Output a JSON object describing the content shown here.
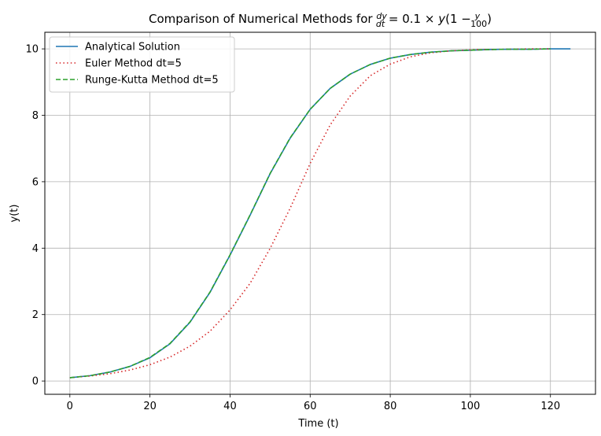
{
  "chart_data": {
    "type": "line",
    "title": {
      "prefix": "Comparison of Numerical Methods for ",
      "dy": "dy",
      "dt": "dt",
      "eq": " = 0.1 × ",
      "y_var": "y",
      "open": "(1 − ",
      "frac_num": "y",
      "frac_den": "100",
      "close": ")"
    },
    "xlabel": "Time (t)",
    "ylabel": "y(t)",
    "xlim": [
      -6.25,
      131.25
    ],
    "ylim": [
      -0.4,
      10.5
    ],
    "xticks": [
      0,
      20,
      40,
      60,
      80,
      100,
      120
    ],
    "yticks": [
      0,
      2,
      4,
      6,
      8,
      10
    ],
    "grid": true,
    "legend_position": "top-left",
    "series": [
      {
        "name": "Analytical Solution",
        "color": "#1f77b4",
        "style": "solid",
        "x": [
          0,
          5,
          10,
          15,
          20,
          25,
          30,
          35,
          40,
          45,
          50,
          55,
          60,
          65,
          70,
          75,
          80,
          85,
          90,
          95,
          100,
          105,
          110,
          115,
          120,
          125
        ],
        "y": [
          0.1,
          0.16,
          0.27,
          0.44,
          0.7,
          1.12,
          1.77,
          2.67,
          3.79,
          4.99,
          6.24,
          7.31,
          8.18,
          8.81,
          9.24,
          9.53,
          9.72,
          9.83,
          9.9,
          9.94,
          9.96,
          9.98,
          9.99,
          9.99,
          10.0,
          10.0
        ]
      },
      {
        "name": "Euler Method dt=5",
        "color": "#d62728",
        "style": "dotted",
        "x": [
          0,
          5,
          10,
          15,
          20,
          25,
          30,
          35,
          40,
          45,
          50,
          55,
          60,
          65,
          70,
          75,
          80,
          85,
          90,
          95,
          100,
          105,
          110,
          115,
          120
        ],
        "y": [
          0.1,
          0.15,
          0.22,
          0.33,
          0.49,
          0.72,
          1.05,
          1.5,
          2.14,
          2.94,
          3.99,
          5.2,
          6.55,
          7.71,
          8.58,
          9.19,
          9.54,
          9.76,
          9.88,
          9.94,
          9.97,
          9.98,
          9.99,
          10.0,
          10.0
        ]
      },
      {
        "name": "Runge-Kutta Method dt=5",
        "color": "#2ca02c",
        "style": "dashed",
        "x": [
          0,
          5,
          10,
          15,
          20,
          25,
          30,
          35,
          40,
          45,
          50,
          55,
          60,
          65,
          70,
          75,
          80,
          85,
          90,
          95,
          100,
          105,
          110,
          115,
          120
        ],
        "y": [
          0.1,
          0.16,
          0.27,
          0.44,
          0.71,
          1.13,
          1.78,
          2.68,
          3.8,
          5.0,
          6.25,
          7.32,
          8.18,
          8.81,
          9.24,
          9.53,
          9.72,
          9.83,
          9.9,
          9.94,
          9.96,
          9.98,
          9.99,
          9.99,
          10.0
        ]
      }
    ]
  }
}
